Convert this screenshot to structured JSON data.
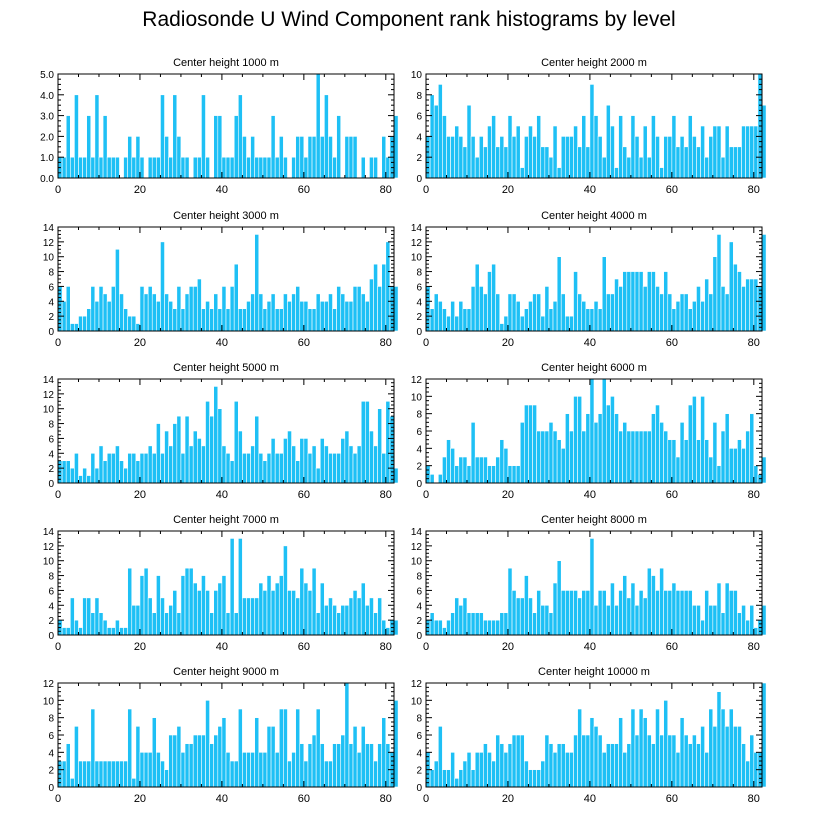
{
  "figure": {
    "title": "Radiosonde U Wind Component rank histograms by level",
    "bar_color": "#1ec0f5",
    "bar_edge_color": "#ffffff"
  },
  "chart_data": [
    {
      "type": "bar",
      "title": "Center height 1000 m",
      "xlim": [
        0,
        82
      ],
      "xticks": [
        0,
        20,
        40,
        60,
        80
      ],
      "ylim": [
        0,
        5
      ],
      "yticks": [
        0,
        1,
        2,
        3,
        4,
        5
      ],
      "ytick_labels": [
        "0.0",
        "1.0",
        "2.0",
        "3.0",
        "4.0",
        "5.0"
      ],
      "x_start": 0,
      "values": [
        1,
        1,
        3,
        1,
        4,
        1,
        1,
        3,
        1,
        4,
        1,
        3,
        1,
        1,
        1,
        0,
        1,
        2,
        1,
        2,
        1,
        0,
        1,
        1,
        1,
        4,
        2,
        1,
        4,
        2,
        1,
        1,
        0,
        1,
        1,
        4,
        1,
        0,
        3,
        3,
        1,
        1,
        1,
        3,
        4,
        2,
        1,
        2,
        1,
        1,
        1,
        1,
        3,
        1,
        2,
        1,
        0,
        1,
        2,
        2,
        1,
        2,
        2,
        5,
        2,
        4,
        2,
        1,
        3,
        0,
        2,
        2,
        2,
        0,
        1,
        0,
        1,
        1,
        0,
        2,
        1,
        2,
        3
      ]
    },
    {
      "type": "bar",
      "title": "Center height 2000 m",
      "xlim": [
        0,
        82
      ],
      "xticks": [
        0,
        20,
        40,
        60,
        80
      ],
      "ylim": [
        0,
        10
      ],
      "yticks": [
        0,
        2,
        4,
        6,
        8,
        10
      ],
      "x_start": 0,
      "values": [
        4,
        8,
        7,
        9,
        6,
        4,
        4,
        5,
        4,
        3,
        7,
        4,
        2,
        4,
        3,
        5,
        6,
        3,
        4,
        3,
        6,
        4,
        5,
        1,
        4,
        5,
        4,
        6,
        3,
        3,
        2,
        5,
        1,
        4,
        4,
        4,
        5,
        3,
        6,
        3,
        9,
        6,
        4,
        2,
        7,
        5,
        1,
        6,
        3,
        2,
        6,
        4,
        2,
        5,
        2,
        6,
        4,
        1,
        4,
        4,
        6,
        3,
        4,
        3,
        6,
        4,
        3,
        5,
        2,
        4,
        5,
        5,
        2,
        5,
        3,
        3,
        3,
        5,
        5,
        5,
        5,
        10,
        7
      ]
    },
    {
      "type": "bar",
      "title": "Center height 3000 m",
      "xlim": [
        0,
        82
      ],
      "xticks": [
        0,
        20,
        40,
        60,
        80
      ],
      "ylim": [
        0,
        14
      ],
      "yticks": [
        0,
        2,
        4,
        6,
        8,
        10,
        12,
        14
      ],
      "x_start": 0,
      "values": [
        6,
        4,
        6,
        1,
        1,
        2,
        2,
        3,
        6,
        4,
        6,
        5,
        4,
        6,
        11,
        5,
        3,
        2,
        2,
        1,
        6,
        5,
        6,
        5,
        4,
        12,
        5,
        4,
        3,
        6,
        3,
        5,
        6,
        6,
        7,
        3,
        4,
        3,
        5,
        3,
        6,
        3,
        6,
        9,
        3,
        3,
        4,
        5,
        13,
        5,
        3,
        4,
        5,
        3,
        3,
        5,
        4,
        5,
        6,
        4,
        4,
        3,
        3,
        5,
        4,
        4,
        5,
        3,
        6,
        5,
        4,
        4,
        6,
        6,
        5,
        4,
        7,
        9,
        6,
        9,
        12,
        6,
        6
      ]
    },
    {
      "type": "bar",
      "title": "Center height 4000 m",
      "xlim": [
        0,
        82
      ],
      "xticks": [
        0,
        20,
        40,
        60,
        80
      ],
      "ylim": [
        0,
        14
      ],
      "yticks": [
        0,
        2,
        4,
        6,
        8,
        10,
        12,
        14
      ],
      "x_start": 0,
      "values": [
        6,
        3,
        5,
        4,
        3,
        2,
        4,
        2,
        4,
        3,
        3,
        6,
        9,
        6,
        5,
        8,
        9,
        5,
        1,
        2,
        5,
        5,
        4,
        2,
        3,
        4,
        5,
        5,
        2,
        6,
        3,
        4,
        10,
        5,
        2,
        2,
        8,
        5,
        4,
        3,
        3,
        4,
        3,
        10,
        5,
        5,
        7,
        6,
        8,
        8,
        8,
        8,
        8,
        6,
        8,
        8,
        6,
        5,
        8,
        5,
        3,
        4,
        5,
        5,
        3,
        4,
        6,
        4,
        7,
        5,
        10,
        13,
        6,
        5,
        12,
        9,
        8,
        6,
        7,
        7,
        7,
        6,
        13
      ]
    },
    {
      "type": "bar",
      "title": "Center height 5000 m",
      "xlim": [
        0,
        82
      ],
      "xticks": [
        0,
        20,
        40,
        60,
        80
      ],
      "ylim": [
        0,
        14
      ],
      "yticks": [
        0,
        2,
        4,
        6,
        8,
        10,
        12,
        14
      ],
      "x_start": 0,
      "values": [
        3,
        3,
        3,
        2,
        4,
        1,
        2,
        1,
        4,
        2,
        5,
        3,
        4,
        4,
        5,
        3,
        2,
        4,
        4,
        3,
        4,
        4,
        5,
        4,
        8,
        4,
        7,
        5,
        8,
        9,
        4,
        9,
        5,
        7,
        6,
        5,
        11,
        9,
        13,
        10,
        5,
        4,
        3,
        11,
        7,
        4,
        4,
        5,
        9,
        4,
        3,
        4,
        6,
        4,
        4,
        6,
        7,
        5,
        3,
        6,
        6,
        4,
        5,
        2,
        6,
        5,
        4,
        4,
        4,
        6,
        7,
        5,
        4,
        5,
        11,
        11,
        7,
        5,
        10,
        4,
        11,
        9,
        2
      ]
    },
    {
      "type": "bar",
      "title": "Center height 6000 m",
      "xlim": [
        0,
        82
      ],
      "xticks": [
        0,
        20,
        40,
        60,
        80
      ],
      "ylim": [
        0,
        12
      ],
      "yticks": [
        0,
        2,
        4,
        6,
        8,
        10,
        12
      ],
      "x_start": 0,
      "values": [
        2,
        1,
        0,
        1,
        3,
        5,
        4,
        2,
        3,
        3,
        2,
        7,
        3,
        3,
        3,
        2,
        2,
        3,
        5,
        4,
        2,
        2,
        2,
        7,
        9,
        9,
        9,
        6,
        6,
        6,
        7,
        6,
        5,
        4,
        8,
        6,
        10,
        10,
        6,
        8,
        12,
        7,
        8,
        12,
        9,
        10,
        8,
        6,
        7,
        6,
        6,
        6,
        6,
        6,
        6,
        8,
        9,
        7,
        6,
        5,
        5,
        3,
        7,
        5,
        9,
        10,
        5,
        10,
        5,
        3,
        7,
        2,
        6,
        8,
        4,
        4,
        5,
        4,
        6,
        8,
        2,
        1,
        3
      ]
    },
    {
      "type": "bar",
      "title": "Center height 7000 m",
      "xlim": [
        0,
        82
      ],
      "xticks": [
        0,
        20,
        40,
        60,
        80
      ],
      "ylim": [
        0,
        14
      ],
      "yticks": [
        0,
        2,
        4,
        6,
        8,
        10,
        12,
        14
      ],
      "x_start": 0,
      "values": [
        2,
        1,
        1,
        5,
        2,
        1,
        5,
        5,
        3,
        5,
        3,
        2,
        1,
        1,
        2,
        1,
        1,
        9,
        4,
        4,
        8,
        9,
        5,
        3,
        8,
        5,
        3,
        4,
        6,
        3,
        8,
        9,
        9,
        7,
        6,
        8,
        6,
        3,
        6,
        7,
        8,
        3,
        13,
        3,
        13,
        5,
        5,
        5,
        5,
        7,
        6,
        8,
        6,
        7,
        8,
        12,
        6,
        6,
        5,
        9,
        7,
        6,
        9,
        3,
        7,
        4,
        5,
        4,
        3,
        4,
        4,
        5,
        6,
        5,
        7,
        4,
        5,
        3,
        5,
        2,
        1,
        2,
        2
      ]
    },
    {
      "type": "bar",
      "title": "Center height 8000 m",
      "xlim": [
        0,
        82
      ],
      "xticks": [
        0,
        20,
        40,
        60,
        80
      ],
      "ylim": [
        0,
        14
      ],
      "yticks": [
        0,
        2,
        4,
        6,
        8,
        10,
        12,
        14
      ],
      "x_start": 0,
      "values": [
        2,
        3,
        2,
        2,
        1,
        2,
        3,
        5,
        4,
        5,
        3,
        3,
        3,
        3,
        2,
        2,
        2,
        2,
        3,
        3,
        9,
        6,
        5,
        5,
        8,
        5,
        3,
        6,
        4,
        4,
        3,
        7,
        10,
        6,
        6,
        6,
        6,
        5,
        6,
        6,
        13,
        4,
        6,
        6,
        4,
        7,
        4,
        6,
        8,
        5,
        7,
        4,
        6,
        5,
        9,
        8,
        6,
        9,
        6,
        6,
        7,
        6,
        6,
        6,
        6,
        4,
        4,
        2,
        6,
        4,
        4,
        7,
        3,
        7,
        6,
        6,
        3,
        4,
        2,
        4,
        1,
        2,
        4
      ]
    },
    {
      "type": "bar",
      "title": "Center height 9000 m",
      "xlim": [
        0,
        82
      ],
      "xticks": [
        0,
        20,
        40,
        60,
        80
      ],
      "ylim": [
        0,
        12
      ],
      "yticks": [
        0,
        2,
        4,
        6,
        8,
        10,
        12
      ],
      "x_start": 0,
      "values": [
        3,
        3,
        5,
        1,
        7,
        3,
        3,
        3,
        9,
        3,
        3,
        3,
        3,
        3,
        3,
        3,
        3,
        9,
        1,
        7,
        4,
        4,
        4,
        8,
        4,
        3,
        2,
        6,
        6,
        7,
        4,
        5,
        5,
        6,
        6,
        6,
        10,
        5,
        6,
        7,
        8,
        4,
        3,
        3,
        9,
        4,
        4,
        4,
        8,
        4,
        4,
        7,
        7,
        4,
        9,
        9,
        3,
        4,
        9,
        5,
        3,
        5,
        6,
        9,
        5,
        3,
        3,
        5,
        5,
        6,
        12,
        5,
        7,
        4,
        7,
        5,
        5,
        3,
        5,
        8,
        5,
        4,
        10
      ]
    },
    {
      "type": "bar",
      "title": "Center height 10000 m",
      "xlim": [
        0,
        82
      ],
      "xticks": [
        0,
        20,
        40,
        60,
        80
      ],
      "ylim": [
        0,
        12
      ],
      "yticks": [
        0,
        2,
        4,
        6,
        8,
        10,
        12
      ],
      "x_start": 0,
      "values": [
        4,
        2,
        3,
        7,
        2,
        2,
        4,
        1,
        2,
        3,
        4,
        2,
        4,
        4,
        5,
        4,
        3,
        6,
        5,
        4,
        5,
        6,
        6,
        6,
        3,
        2,
        2,
        2,
        3,
        6,
        5,
        4,
        5,
        5,
        4,
        4,
        6,
        9,
        6,
        6,
        8,
        7,
        6,
        4,
        5,
        5,
        5,
        8,
        4,
        5,
        9,
        6,
        9,
        8,
        6,
        5,
        9,
        6,
        10,
        6,
        6,
        4,
        8,
        6,
        5,
        6,
        5,
        7,
        4,
        9,
        7,
        11,
        9,
        7,
        9,
        7,
        7,
        5,
        3,
        6,
        4,
        4,
        12
      ]
    }
  ]
}
